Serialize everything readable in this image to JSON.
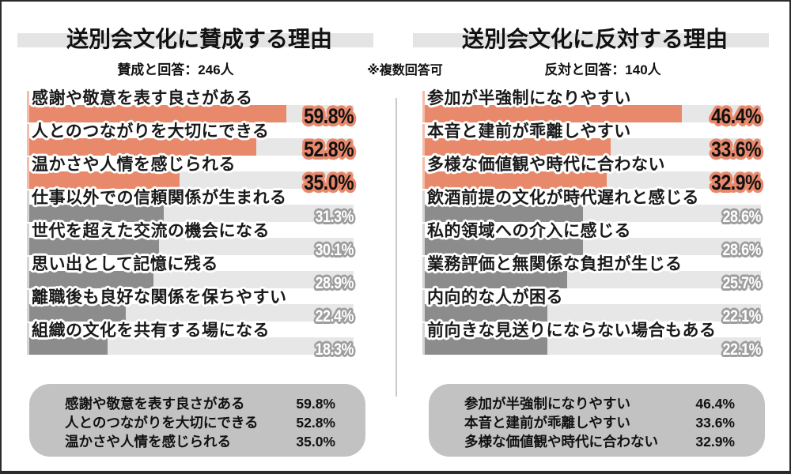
{
  "note": "※複数回答可",
  "colors": {
    "accent": "#E8896C",
    "accent_light": "#F4BCA9",
    "bar_gray": "#8C8C8C",
    "bar_gray_light": "#D4D4D4",
    "track": "#E7E7E7",
    "gray_value_outline": "#9E9E9E",
    "title_band": "#E4E4E4",
    "summary_bg": "#C2C2C2"
  },
  "chart_data": [
    {
      "type": "bar",
      "orientation": "horizontal",
      "title": "送別会文化に賛成する理由",
      "subtitle": "賛成と回答：246人",
      "unit": "%",
      "top_highlight_count": 3,
      "categories": [
        "感謝や敬意を表す良さがある",
        "人とのつながりを大切にできる",
        "温かさや人情を感じられる",
        "仕事以外での信頼関係が生まれる",
        "世代を超えた交流の機会になる",
        "思い出として記憶に残る",
        "離職後も良好な関係を保ちやすい",
        "組織の文化を共有する場になる"
      ],
      "values": [
        59.8,
        52.8,
        35.0,
        31.3,
        30.1,
        28.9,
        22.4,
        18.3
      ]
    },
    {
      "type": "bar",
      "orientation": "horizontal",
      "title": "送別会文化に反対する理由",
      "subtitle": "反対と回答：140人",
      "unit": "%",
      "top_highlight_count": 3,
      "categories": [
        "参加が半強制になりやすい",
        "本音と建前が乖離しやすい",
        "多様な価値観や時代に合わない",
        "飲酒前提の文化が時代遅れと感じる",
        "私的領域への介入に感じる",
        "業務評価と無関係な負担が生じる",
        "内向的な人が困る",
        "前向きな見送りにならない場合もある"
      ],
      "values": [
        46.4,
        33.6,
        32.9,
        28.6,
        28.6,
        25.7,
        22.1,
        22.1
      ]
    }
  ]
}
